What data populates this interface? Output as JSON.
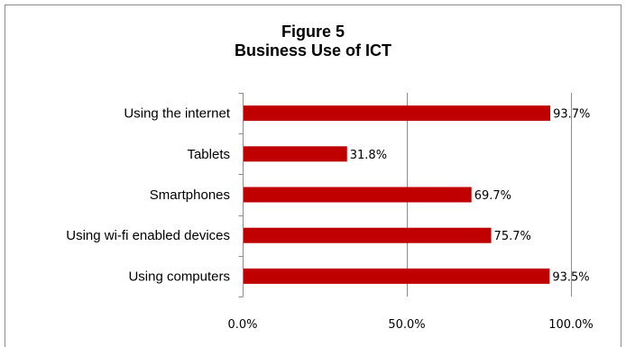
{
  "chart_data": {
    "type": "bar",
    "orientation": "horizontal",
    "title_line1": "Figure 5",
    "title_line2": "Business Use of ICT",
    "categories": [
      "Using the internet",
      "Tablets",
      "Smartphones",
      "Using wi-fi enabled devices",
      "Using computers"
    ],
    "values": [
      93.7,
      31.8,
      69.7,
      75.7,
      93.5
    ],
    "value_labels": [
      "93.7%",
      "31.8%",
      "69.7%",
      "75.7%",
      "93.5%"
    ],
    "xlim": [
      0,
      100
    ],
    "xticks": [
      0,
      50,
      100
    ],
    "xtick_labels": [
      "0.0%",
      "50.0%",
      "100.0%"
    ],
    "grid": "vertical",
    "legend": "none",
    "bar_color": "#c00000"
  }
}
